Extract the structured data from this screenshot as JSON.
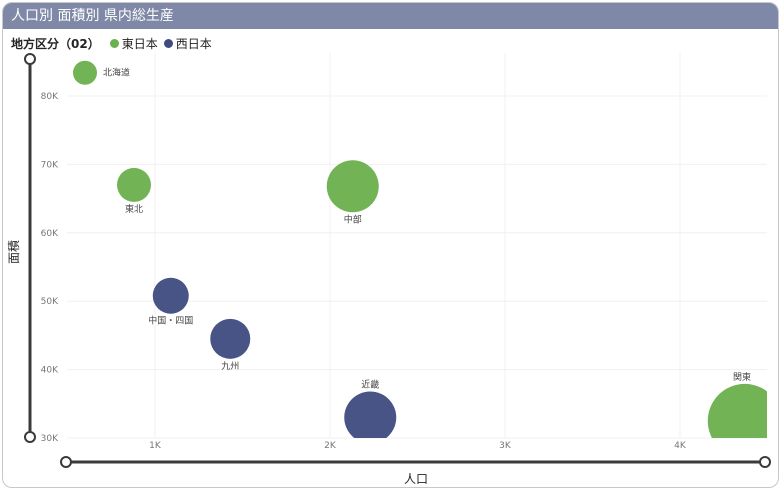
{
  "header": {
    "title": "人口別 面積別 県内総生産"
  },
  "legend": {
    "title": "地方区分（02）",
    "items": [
      {
        "label": "東日本",
        "color": "#6ab04c"
      },
      {
        "label": "西日本",
        "color": "#3f4b7f"
      }
    ]
  },
  "chart_data": {
    "type": "scatter",
    "xlabel": "人口",
    "ylabel": "面積",
    "xlim": [
      600,
      4500
    ],
    "ylim": [
      30000,
      85000
    ],
    "x_ticks": [
      1000,
      2000,
      3000,
      4000
    ],
    "x_tick_labels": [
      "1K",
      "2K",
      "3K",
      "4K"
    ],
    "y_ticks": [
      30000,
      40000,
      50000,
      60000,
      70000,
      80000
    ],
    "y_tick_labels": [
      "30K",
      "40K",
      "50K",
      "60K",
      "70K",
      "80K"
    ],
    "grid": true,
    "legend_position": "top-left",
    "points": [
      {
        "label": "北海道",
        "x": 600,
        "y": 83400,
        "size": 12,
        "group": "東日本"
      },
      {
        "label": "東北",
        "x": 880,
        "y": 67000,
        "size": 17,
        "group": "東日本"
      },
      {
        "label": "中部",
        "x": 2130,
        "y": 66800,
        "size": 26,
        "group": "東日本"
      },
      {
        "label": "関東",
        "x": 4370,
        "y": 32500,
        "size": 37,
        "group": "東日本"
      },
      {
        "label": "中国・四国",
        "x": 1090,
        "y": 50800,
        "size": 18,
        "group": "西日本"
      },
      {
        "label": "九州",
        "x": 1430,
        "y": 44500,
        "size": 20,
        "group": "西日本"
      },
      {
        "label": "近畿",
        "x": 2230,
        "y": 33000,
        "size": 26,
        "group": "西日本"
      }
    ]
  }
}
